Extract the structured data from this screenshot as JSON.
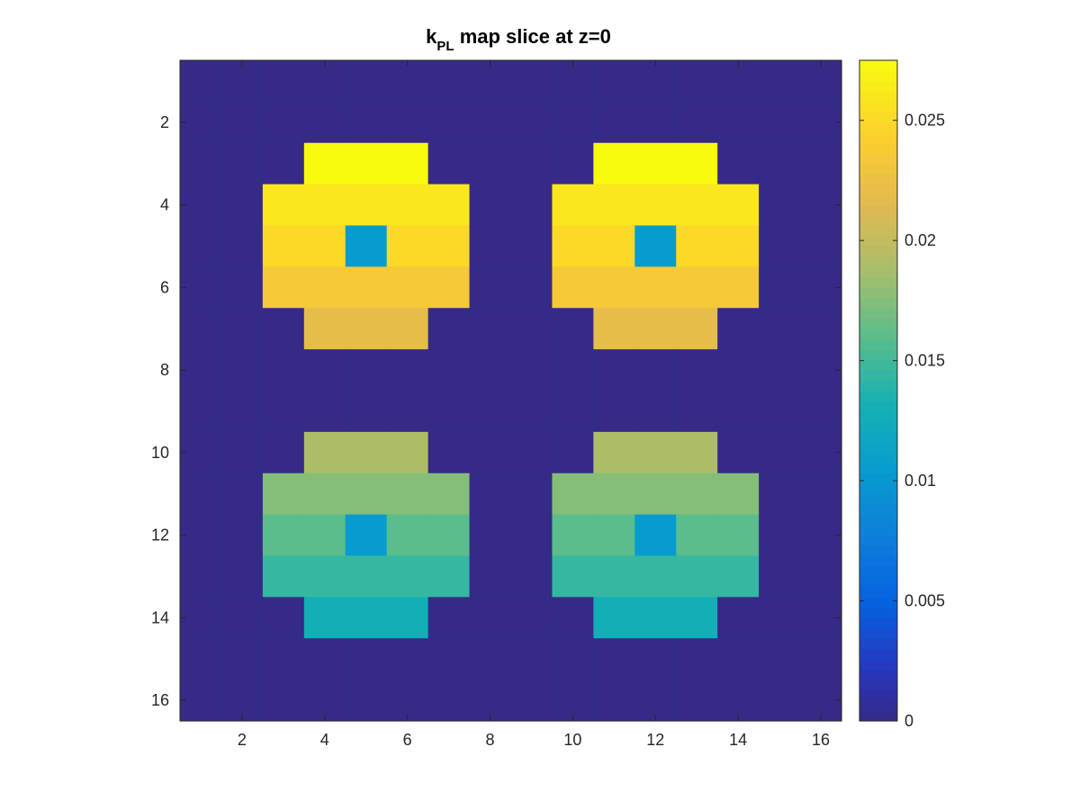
{
  "chart_data": {
    "type": "heatmap",
    "title": {
      "main": "k",
      "subscript": "PL",
      "rest": " map slice at z=0"
    },
    "xlabel": "",
    "ylabel": "",
    "x_ticks": [
      "2",
      "4",
      "6",
      "8",
      "10",
      "12",
      "14",
      "16"
    ],
    "y_ticks": [
      "2",
      "4",
      "6",
      "8",
      "10",
      "12",
      "14",
      "16"
    ],
    "x_range": [
      0.5,
      16.5
    ],
    "y_range": [
      0.5,
      16.5
    ],
    "y_direction": "reversed",
    "colormap": "parula",
    "clim": [
      0,
      0.0275
    ],
    "colorbar": {
      "placement": "right",
      "ticks": [
        0,
        0.005,
        0.01,
        0.015,
        0.02,
        0.025
      ],
      "tick_labels": [
        "0",
        "0.005",
        "0.01",
        "0.015",
        "0.02",
        "0.025"
      ]
    },
    "grid": false,
    "values": [
      [
        0,
        0,
        0,
        0,
        0,
        0,
        0,
        0,
        0,
        0,
        0,
        0,
        0,
        0,
        0,
        0
      ],
      [
        0,
        0,
        0,
        0,
        0,
        0,
        0,
        0,
        0,
        0,
        0,
        0,
        0,
        0,
        0,
        0
      ],
      [
        0,
        0,
        0,
        0.0275,
        0.0275,
        0.0275,
        0,
        0,
        0,
        0,
        0.0275,
        0.0275,
        0.0275,
        0,
        0,
        0
      ],
      [
        0,
        0,
        0.026,
        0.026,
        0.026,
        0.026,
        0.026,
        0,
        0,
        0.026,
        0.026,
        0.026,
        0.026,
        0.026,
        0,
        0
      ],
      [
        0,
        0,
        0.025,
        0.025,
        0.0105,
        0.025,
        0.025,
        0,
        0,
        0.025,
        0.025,
        0.0105,
        0.025,
        0.025,
        0,
        0
      ],
      [
        0,
        0,
        0.0235,
        0.0235,
        0.0235,
        0.0235,
        0.0235,
        0,
        0,
        0.0235,
        0.0235,
        0.0235,
        0.0235,
        0.0235,
        0,
        0
      ],
      [
        0,
        0,
        0,
        0.022,
        0.022,
        0.022,
        0,
        0,
        0,
        0,
        0.022,
        0.022,
        0.022,
        0,
        0,
        0
      ],
      [
        0,
        0,
        0,
        0,
        0,
        0,
        0,
        0,
        0,
        0,
        0,
        0,
        0,
        0,
        0,
        0
      ],
      [
        0,
        0,
        0,
        0,
        0,
        0,
        0,
        0,
        0,
        0,
        0,
        0,
        0,
        0,
        0,
        0
      ],
      [
        0,
        0,
        0,
        0.019,
        0.019,
        0.019,
        0,
        0,
        0,
        0,
        0.019,
        0.019,
        0.019,
        0,
        0,
        0
      ],
      [
        0,
        0,
        0.0175,
        0.0175,
        0.0175,
        0.0175,
        0.0175,
        0,
        0,
        0.0175,
        0.0175,
        0.0175,
        0.0175,
        0.0175,
        0,
        0
      ],
      [
        0,
        0,
        0.016,
        0.016,
        0.0105,
        0.016,
        0.016,
        0,
        0,
        0.016,
        0.016,
        0.0105,
        0.016,
        0.016,
        0,
        0
      ],
      [
        0,
        0,
        0.0145,
        0.0145,
        0.0145,
        0.0145,
        0.0145,
        0,
        0,
        0.0145,
        0.0145,
        0.0145,
        0.0145,
        0.0145,
        0,
        0
      ],
      [
        0,
        0,
        0,
        0.013,
        0.013,
        0.013,
        0,
        0,
        0,
        0,
        0.013,
        0.013,
        0.013,
        0,
        0,
        0
      ],
      [
        0,
        0,
        0,
        0,
        0,
        0,
        0,
        0,
        0,
        0,
        0,
        0,
        0,
        0,
        0,
        0
      ],
      [
        0,
        0,
        0,
        0,
        0,
        0,
        0,
        0,
        0,
        0,
        0,
        0,
        0,
        0,
        0,
        0
      ]
    ]
  }
}
